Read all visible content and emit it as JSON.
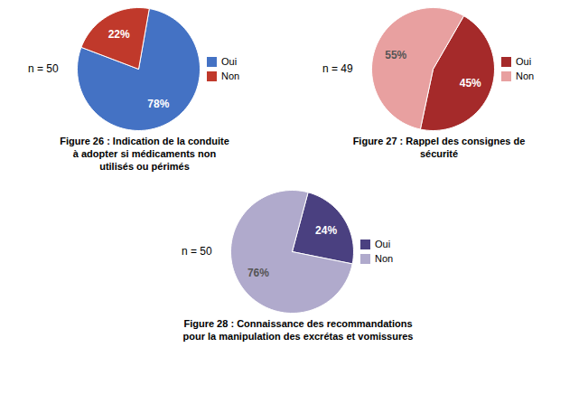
{
  "chart_data": [
    {
      "type": "pie",
      "title": "Figure 26 : Indication de la conduite\nà adopter si médicaments non\nutilisés ou périmés",
      "categories": [
        "Oui",
        "Non"
      ],
      "values": [
        78,
        22
      ],
      "value_labels": [
        "78%",
        "22%"
      ],
      "colors": [
        "#4472C4",
        "#C0392B"
      ],
      "annotations": [
        "n = 50"
      ],
      "data_labels": true,
      "legend": "right"
    },
    {
      "type": "pie",
      "title": "Figure 27 : Rappel des consignes de\nsécurité",
      "categories": [
        "Oui",
        "Non"
      ],
      "values": [
        45,
        55
      ],
      "value_labels": [
        "45%",
        "55%"
      ],
      "colors": [
        "#A52A2A",
        "#E8A0A0"
      ],
      "annotations": [
        "n = 49"
      ],
      "data_labels": true,
      "legend": "right"
    },
    {
      "type": "pie",
      "title": "Figure 28 : Connaissance des recommandations\npour la manipulation des excrétas et vomissures",
      "categories": [
        "Oui",
        "Non"
      ],
      "values": [
        24,
        76
      ],
      "value_labels": [
        "24%",
        "76%"
      ],
      "colors": [
        "#4A4080",
        "#B0AACC"
      ],
      "annotations": [
        "n = 50"
      ],
      "data_labels": true,
      "legend": "right"
    }
  ]
}
